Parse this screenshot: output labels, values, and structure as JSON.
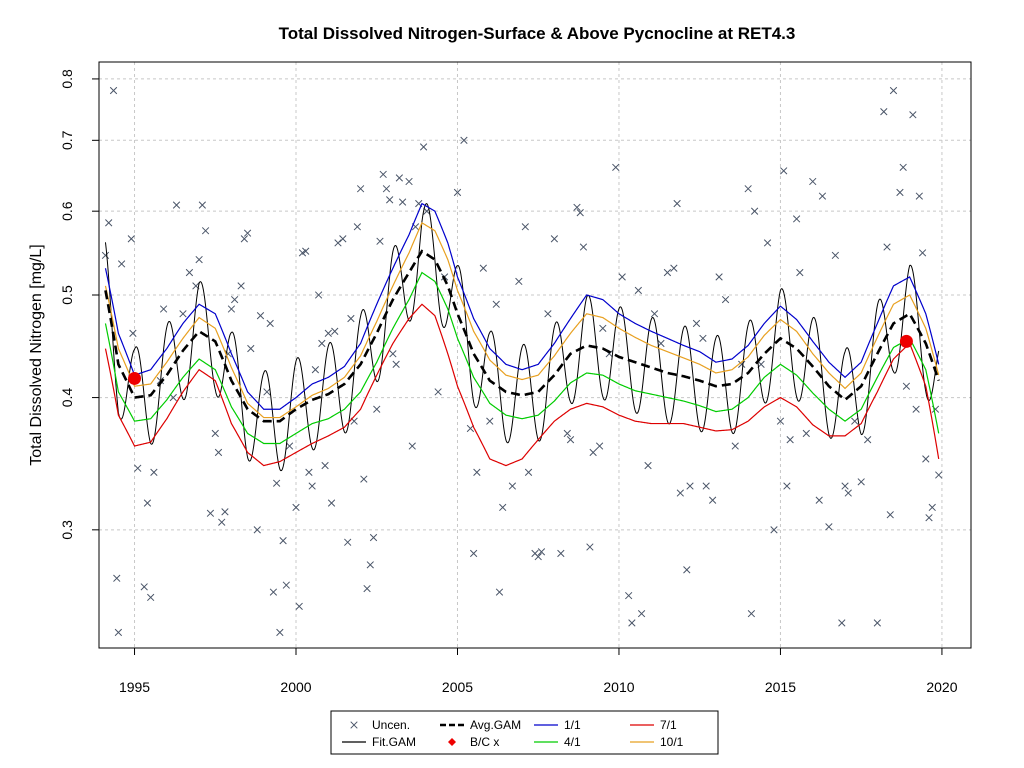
{
  "chart_data": {
    "type": "line",
    "title": "Total Dissolved Nitrogen-Surface & Above Pycnocline at RET4.3",
    "xlabel": "",
    "ylabel": "Total Dissolved Nitrogen [mg/L]",
    "yscale": "log",
    "xlim": [
      1993.9,
      2020.9
    ],
    "ylim": [
      0.232,
      0.83
    ],
    "x_ticks": [
      1995,
      2000,
      2005,
      2010,
      2015,
      2020
    ],
    "y_ticks": [
      0.3,
      0.4,
      0.5,
      0.6,
      0.7,
      0.8
    ],
    "grid": true,
    "legend_position": "bottom",
    "colors": {
      "uncen": "#4a5568",
      "fit": "#000000",
      "avg": "#000000",
      "one_one": "#0000cc",
      "four_one": "#00cc00",
      "seven_one": "#dd0000",
      "ten_one": "#e8a020",
      "bc": "#ee0000"
    },
    "legend": [
      {
        "key": "uncen",
        "label": "Uncen."
      },
      {
        "key": "avg",
        "label": "Avg.GAM"
      },
      {
        "key": "one_one",
        "label": "1/1"
      },
      {
        "key": "seven_one",
        "label": "7/1"
      },
      {
        "key": "fit",
        "label": "Fit.GAM"
      },
      {
        "key": "bc",
        "label": "B/C x"
      },
      {
        "key": "four_one",
        "label": "4/1"
      },
      {
        "key": "ten_one",
        "label": "10/1"
      }
    ],
    "avg_gam": {
      "x": [
        1994.1,
        1994.5,
        1995.0,
        1995.5,
        1996.0,
        1996.5,
        1997.0,
        1997.5,
        1998.0,
        1998.5,
        1999.0,
        1999.5,
        2000.0,
        2000.5,
        2001.0,
        2001.5,
        2002.0,
        2002.5,
        2003.0,
        2003.5,
        2003.9,
        2004.3,
        2004.7,
        2005.0,
        2005.5,
        2006.0,
        2006.5,
        2007.0,
        2007.5,
        2008.0,
        2008.5,
        2009.0,
        2009.5,
        2010.0,
        2010.5,
        2011.0,
        2011.5,
        2012.0,
        2012.5,
        2013.0,
        2013.5,
        2014.0,
        2014.5,
        2015.0,
        2015.5,
        2016.0,
        2016.5,
        2017.0,
        2017.5,
        2018.0,
        2018.5,
        2019.0,
        2019.5,
        2019.9
      ],
      "y": [
        0.505,
        0.43,
        0.4,
        0.402,
        0.42,
        0.443,
        0.462,
        0.452,
        0.415,
        0.39,
        0.38,
        0.38,
        0.39,
        0.398,
        0.403,
        0.412,
        0.43,
        0.46,
        0.495,
        0.525,
        0.55,
        0.54,
        0.51,
        0.48,
        0.44,
        0.415,
        0.405,
        0.402,
        0.405,
        0.42,
        0.44,
        0.448,
        0.445,
        0.437,
        0.432,
        0.427,
        0.422,
        0.419,
        0.415,
        0.41,
        0.412,
        0.422,
        0.44,
        0.455,
        0.445,
        0.428,
        0.41,
        0.398,
        0.41,
        0.44,
        0.47,
        0.48,
        0.45,
        0.415
      ]
    },
    "one_one": {
      "x": [
        1994.1,
        1994.5,
        1995.0,
        1995.5,
        1996.0,
        1996.5,
        1997.0,
        1997.5,
        1998.0,
        1998.5,
        1999.0,
        1999.5,
        2000.0,
        2000.5,
        2001.0,
        2001.5,
        2002.0,
        2002.5,
        2003.0,
        2003.5,
        2003.9,
        2004.3,
        2004.7,
        2005.0,
        2005.5,
        2006.0,
        2006.5,
        2007.0,
        2007.5,
        2008.0,
        2008.5,
        2009.0,
        2009.5,
        2010.0,
        2010.5,
        2011.0,
        2011.5,
        2012.0,
        2012.5,
        2013.0,
        2013.5,
        2014.0,
        2014.5,
        2015.0,
        2015.5,
        2016.0,
        2016.5,
        2017.0,
        2017.5,
        2018.0,
        2018.5,
        2019.0,
        2019.5,
        2019.9
      ],
      "y": [
        0.53,
        0.46,
        0.42,
        0.425,
        0.445,
        0.47,
        0.49,
        0.48,
        0.44,
        0.405,
        0.39,
        0.39,
        0.4,
        0.412,
        0.418,
        0.428,
        0.45,
        0.49,
        0.53,
        0.57,
        0.61,
        0.6,
        0.56,
        0.52,
        0.475,
        0.445,
        0.43,
        0.425,
        0.43,
        0.45,
        0.475,
        0.5,
        0.495,
        0.48,
        0.47,
        0.462,
        0.455,
        0.448,
        0.442,
        0.432,
        0.435,
        0.448,
        0.47,
        0.488,
        0.474,
        0.452,
        0.432,
        0.418,
        0.432,
        0.47,
        0.51,
        0.52,
        0.48,
        0.43
      ]
    },
    "ten_one": {
      "x": [
        1994.1,
        1994.5,
        1995.0,
        1995.5,
        1996.0,
        1996.5,
        1997.0,
        1997.5,
        1998.0,
        1998.5,
        1999.0,
        1999.5,
        2000.0,
        2000.5,
        2001.0,
        2001.5,
        2002.0,
        2002.5,
        2003.0,
        2003.5,
        2003.9,
        2004.3,
        2004.7,
        2005.0,
        2005.5,
        2006.0,
        2006.5,
        2007.0,
        2007.5,
        2008.0,
        2008.5,
        2009.0,
        2009.5,
        2010.0,
        2010.5,
        2011.0,
        2011.5,
        2012.0,
        2012.5,
        2013.0,
        2013.5,
        2014.0,
        2014.5,
        2015.0,
        2015.5,
        2016.0,
        2016.5,
        2017.0,
        2017.5,
        2018.0,
        2018.5,
        2019.0,
        2019.5,
        2019.9
      ],
      "y": [
        0.51,
        0.445,
        0.41,
        0.412,
        0.432,
        0.455,
        0.476,
        0.465,
        0.427,
        0.395,
        0.383,
        0.383,
        0.392,
        0.402,
        0.408,
        0.418,
        0.438,
        0.472,
        0.51,
        0.548,
        0.585,
        0.575,
        0.54,
        0.505,
        0.462,
        0.434,
        0.42,
        0.416,
        0.42,
        0.438,
        0.46,
        0.48,
        0.476,
        0.465,
        0.456,
        0.448,
        0.442,
        0.436,
        0.43,
        0.422,
        0.425,
        0.437,
        0.458,
        0.474,
        0.462,
        0.44,
        0.422,
        0.408,
        0.422,
        0.456,
        0.49,
        0.5,
        0.465,
        0.42
      ]
    },
    "four_one": {
      "x": [
        1994.1,
        1994.5,
        1995.0,
        1995.5,
        1996.0,
        1996.5,
        1997.0,
        1997.5,
        1998.0,
        1998.5,
        1999.0,
        1999.5,
        2000.0,
        2000.5,
        2001.0,
        2001.5,
        2002.0,
        2002.5,
        2003.0,
        2003.5,
        2003.9,
        2004.3,
        2004.7,
        2005.0,
        2005.5,
        2006.0,
        2006.5,
        2007.0,
        2007.5,
        2008.0,
        2008.5,
        2009.0,
        2009.5,
        2010.0,
        2010.5,
        2011.0,
        2011.5,
        2012.0,
        2012.5,
        2013.0,
        2013.5,
        2014.0,
        2014.5,
        2015.0,
        2015.5,
        2016.0,
        2016.5,
        2017.0,
        2017.5,
        2018.0,
        2018.5,
        2019.0,
        2019.5,
        2019.9
      ],
      "y": [
        0.47,
        0.405,
        0.38,
        0.382,
        0.398,
        0.418,
        0.435,
        0.425,
        0.392,
        0.37,
        0.362,
        0.362,
        0.37,
        0.378,
        0.382,
        0.39,
        0.405,
        0.432,
        0.465,
        0.495,
        0.525,
        0.515,
        0.485,
        0.455,
        0.418,
        0.395,
        0.385,
        0.382,
        0.385,
        0.397,
        0.413,
        0.422,
        0.42,
        0.412,
        0.406,
        0.403,
        0.4,
        0.397,
        0.393,
        0.388,
        0.39,
        0.4,
        0.418,
        0.43,
        0.42,
        0.404,
        0.39,
        0.38,
        0.39,
        0.418,
        0.446,
        0.455,
        0.425,
        0.37
      ]
    },
    "seven_one": {
      "x": [
        1994.1,
        1994.5,
        1995.0,
        1995.5,
        1996.0,
        1996.5,
        1997.0,
        1997.5,
        1998.0,
        1998.5,
        1999.0,
        1999.5,
        2000.0,
        2000.5,
        2001.0,
        2001.5,
        2002.0,
        2002.5,
        2003.0,
        2003.5,
        2003.9,
        2004.3,
        2004.7,
        2005.0,
        2005.5,
        2006.0,
        2006.5,
        2007.0,
        2007.5,
        2008.0,
        2008.5,
        2009.0,
        2009.5,
        2010.0,
        2010.5,
        2011.0,
        2011.5,
        2012.0,
        2012.5,
        2013.0,
        2013.5,
        2014.0,
        2014.5,
        2015.0,
        2015.5,
        2016.0,
        2016.5,
        2017.0,
        2017.5,
        2018.0,
        2018.5,
        2019.0,
        2019.5,
        2019.9
      ],
      "y": [
        0.445,
        0.385,
        0.36,
        0.363,
        0.382,
        0.405,
        0.425,
        0.415,
        0.378,
        0.355,
        0.345,
        0.348,
        0.355,
        0.362,
        0.368,
        0.375,
        0.39,
        0.42,
        0.45,
        0.475,
        0.49,
        0.478,
        0.44,
        0.41,
        0.375,
        0.35,
        0.345,
        0.35,
        0.365,
        0.38,
        0.39,
        0.395,
        0.392,
        0.385,
        0.38,
        0.378,
        0.378,
        0.378,
        0.375,
        0.372,
        0.373,
        0.38,
        0.392,
        0.4,
        0.392,
        0.377,
        0.368,
        0.368,
        0.378,
        0.405,
        0.435,
        0.45,
        0.41,
        0.35
      ]
    },
    "fit_gam": {
      "x0": 1994.1,
      "x1": 2019.9,
      "seasonal_amplitude": 0.11,
      "peak_fraction": 0.05
    },
    "bc_points": [
      {
        "x": 1995.0,
        "y": 0.417
      },
      {
        "x": 2018.9,
        "y": 0.452
      }
    ],
    "uncensored": [
      [
        1994.1,
        0.545
      ],
      [
        1994.2,
        0.585
      ],
      [
        1994.35,
        0.78
      ],
      [
        1994.45,
        0.27
      ],
      [
        1994.5,
        0.24
      ],
      [
        1994.6,
        0.535
      ],
      [
        1994.9,
        0.565
      ],
      [
        1994.95,
        0.46
      ],
      [
        1995.1,
        0.343
      ],
      [
        1995.3,
        0.265
      ],
      [
        1995.4,
        0.318
      ],
      [
        1995.5,
        0.259
      ],
      [
        1995.6,
        0.34
      ],
      [
        1995.8,
        0.415
      ],
      [
        1995.9,
        0.485
      ],
      [
        1996.2,
        0.4
      ],
      [
        1996.3,
        0.608
      ],
      [
        1996.5,
        0.48
      ],
      [
        1996.7,
        0.525
      ],
      [
        1996.9,
        0.51
      ],
      [
        1997.0,
        0.54
      ],
      [
        1997.1,
        0.608
      ],
      [
        1997.2,
        0.575
      ],
      [
        1997.35,
        0.311
      ],
      [
        1997.5,
        0.37
      ],
      [
        1997.6,
        0.355
      ],
      [
        1997.7,
        0.305
      ],
      [
        1997.8,
        0.312
      ],
      [
        1997.9,
        0.44
      ],
      [
        1998.0,
        0.485
      ],
      [
        1998.1,
        0.495
      ],
      [
        1998.3,
        0.51
      ],
      [
        1998.4,
        0.565
      ],
      [
        1998.5,
        0.572
      ],
      [
        1998.6,
        0.445
      ],
      [
        1998.8,
        0.3
      ],
      [
        1998.9,
        0.478
      ],
      [
        1999.1,
        0.405
      ],
      [
        1999.2,
        0.47
      ],
      [
        1999.3,
        0.262
      ],
      [
        1999.4,
        0.332
      ],
      [
        1999.5,
        0.24
      ],
      [
        1999.6,
        0.293
      ],
      [
        1999.7,
        0.266
      ],
      [
        1999.8,
        0.36
      ],
      [
        2000.0,
        0.315
      ],
      [
        2000.1,
        0.254
      ],
      [
        2000.2,
        0.548
      ],
      [
        2000.3,
        0.55
      ],
      [
        2000.4,
        0.34
      ],
      [
        2000.5,
        0.33
      ],
      [
        2000.6,
        0.425
      ],
      [
        2000.7,
        0.5
      ],
      [
        2000.8,
        0.45
      ],
      [
        2000.9,
        0.345
      ],
      [
        2001.0,
        0.46
      ],
      [
        2001.1,
        0.318
      ],
      [
        2001.2,
        0.462
      ],
      [
        2001.3,
        0.56
      ],
      [
        2001.45,
        0.565
      ],
      [
        2001.6,
        0.292
      ],
      [
        2001.7,
        0.475
      ],
      [
        2001.8,
        0.38
      ],
      [
        2001.9,
        0.58
      ],
      [
        2002.0,
        0.63
      ],
      [
        2002.1,
        0.335
      ],
      [
        2002.2,
        0.264
      ],
      [
        2002.3,
        0.278
      ],
      [
        2002.4,
        0.295
      ],
      [
        2002.5,
        0.39
      ],
      [
        2002.6,
        0.562
      ],
      [
        2002.7,
        0.65
      ],
      [
        2002.8,
        0.63
      ],
      [
        2002.9,
        0.615
      ],
      [
        2003.0,
        0.44
      ],
      [
        2003.1,
        0.43
      ],
      [
        2003.2,
        0.645
      ],
      [
        2003.3,
        0.612
      ],
      [
        2003.5,
        0.64
      ],
      [
        2003.6,
        0.36
      ],
      [
        2003.7,
        0.58
      ],
      [
        2003.8,
        0.61
      ],
      [
        2003.95,
        0.69
      ],
      [
        2004.05,
        0.6
      ],
      [
        2004.4,
        0.405
      ],
      [
        2004.6,
        0.52
      ],
      [
        2005.0,
        0.625
      ],
      [
        2005.2,
        0.7
      ],
      [
        2005.4,
        0.374
      ],
      [
        2005.5,
        0.285
      ],
      [
        2005.6,
        0.34
      ],
      [
        2005.8,
        0.53
      ],
      [
        2006.0,
        0.38
      ],
      [
        2006.2,
        0.49
      ],
      [
        2006.3,
        0.262
      ],
      [
        2006.4,
        0.315
      ],
      [
        2006.7,
        0.33
      ],
      [
        2006.9,
        0.515
      ],
      [
        2007.1,
        0.58
      ],
      [
        2007.2,
        0.34
      ],
      [
        2007.4,
        0.285
      ],
      [
        2007.5,
        0.283
      ],
      [
        2007.6,
        0.286
      ],
      [
        2007.8,
        0.48
      ],
      [
        2008.0,
        0.565
      ],
      [
        2008.2,
        0.285
      ],
      [
        2008.4,
        0.37
      ],
      [
        2008.5,
        0.365
      ],
      [
        2008.7,
        0.605
      ],
      [
        2008.8,
        0.598
      ],
      [
        2008.9,
        0.555
      ],
      [
        2009.1,
        0.289
      ],
      [
        2009.2,
        0.355
      ],
      [
        2009.4,
        0.36
      ],
      [
        2009.5,
        0.465
      ],
      [
        2009.7,
        0.44
      ],
      [
        2009.9,
        0.66
      ],
      [
        2010.1,
        0.52
      ],
      [
        2010.3,
        0.26
      ],
      [
        2010.4,
        0.245
      ],
      [
        2010.6,
        0.505
      ],
      [
        2010.7,
        0.25
      ],
      [
        2010.9,
        0.345
      ],
      [
        2011.1,
        0.48
      ],
      [
        2011.3,
        0.45
      ],
      [
        2011.5,
        0.525
      ],
      [
        2011.7,
        0.53
      ],
      [
        2011.8,
        0.61
      ],
      [
        2011.9,
        0.325
      ],
      [
        2012.1,
        0.275
      ],
      [
        2012.2,
        0.33
      ],
      [
        2012.4,
        0.47
      ],
      [
        2012.6,
        0.455
      ],
      [
        2012.7,
        0.33
      ],
      [
        2012.9,
        0.32
      ],
      [
        2013.1,
        0.52
      ],
      [
        2013.3,
        0.495
      ],
      [
        2013.6,
        0.36
      ],
      [
        2013.8,
        0.43
      ],
      [
        2014.0,
        0.63
      ],
      [
        2014.1,
        0.25
      ],
      [
        2014.2,
        0.6
      ],
      [
        2014.4,
        0.43
      ],
      [
        2014.6,
        0.56
      ],
      [
        2014.8,
        0.3
      ],
      [
        2015.0,
        0.38
      ],
      [
        2015.1,
        0.655
      ],
      [
        2015.2,
        0.33
      ],
      [
        2015.3,
        0.365
      ],
      [
        2015.5,
        0.59
      ],
      [
        2015.6,
        0.525
      ],
      [
        2015.8,
        0.37
      ],
      [
        2016.0,
        0.64
      ],
      [
        2016.2,
        0.32
      ],
      [
        2016.3,
        0.62
      ],
      [
        2016.5,
        0.302
      ],
      [
        2016.7,
        0.545
      ],
      [
        2016.9,
        0.245
      ],
      [
        2017.0,
        0.33
      ],
      [
        2017.1,
        0.325
      ],
      [
        2017.3,
        0.38
      ],
      [
        2017.5,
        0.333
      ],
      [
        2017.7,
        0.365
      ],
      [
        2018.0,
        0.245
      ],
      [
        2018.2,
        0.745
      ],
      [
        2018.3,
        0.555
      ],
      [
        2018.4,
        0.31
      ],
      [
        2018.5,
        0.78
      ],
      [
        2018.7,
        0.625
      ],
      [
        2018.8,
        0.66
      ],
      [
        2018.9,
        0.41
      ],
      [
        2019.1,
        0.74
      ],
      [
        2019.2,
        0.39
      ],
      [
        2019.3,
        0.62
      ],
      [
        2019.4,
        0.548
      ],
      [
        2019.5,
        0.35
      ],
      [
        2019.6,
        0.308
      ],
      [
        2019.7,
        0.315
      ],
      [
        2019.8,
        0.39
      ],
      [
        2019.9,
        0.338
      ]
    ]
  }
}
